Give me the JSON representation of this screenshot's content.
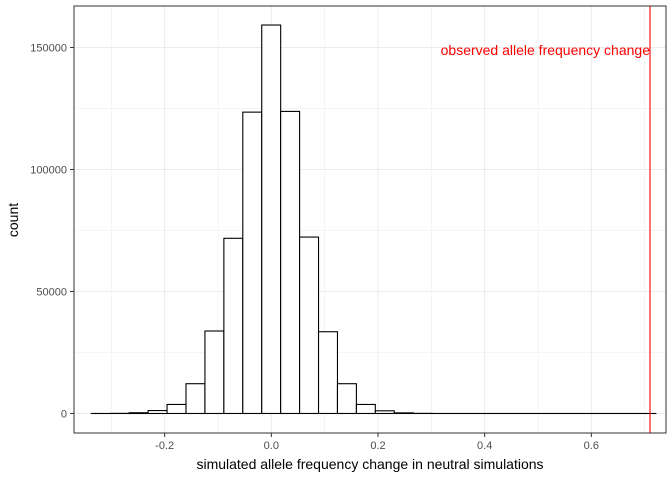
{
  "chart_data": {
    "type": "bar",
    "title": "",
    "xlabel": "simulated allele frequency change in neutral simulations",
    "ylabel": "count",
    "xlim": [
      -0.37,
      0.74
    ],
    "ylim": [
      -8000,
      167000
    ],
    "x_ticks": [
      -0.2,
      0.0,
      0.2,
      0.4,
      0.6
    ],
    "x_tick_labels": [
      "-0.2",
      "0.0",
      "0.2",
      "0.4",
      "0.6"
    ],
    "y_ticks": [
      0,
      50000,
      100000,
      150000
    ],
    "y_tick_labels": [
      "0",
      "50000",
      "100000",
      "150000"
    ],
    "grid": true,
    "bin_width": 0.0355,
    "bins": [
      {
        "x0": -0.3375,
        "x1": -0.302,
        "count": 0
      },
      {
        "x0": -0.302,
        "x1": -0.2665,
        "count": 50
      },
      {
        "x0": -0.2665,
        "x1": -0.231,
        "count": 300
      },
      {
        "x0": -0.231,
        "x1": -0.1955,
        "count": 1200
      },
      {
        "x0": -0.1955,
        "x1": -0.16,
        "count": 3700
      },
      {
        "x0": -0.16,
        "x1": -0.1245,
        "count": 12200
      },
      {
        "x0": -0.1245,
        "x1": -0.089,
        "count": 33800
      },
      {
        "x0": -0.089,
        "x1": -0.0535,
        "count": 71800
      },
      {
        "x0": -0.0535,
        "x1": -0.018,
        "count": 123500
      },
      {
        "x0": -0.018,
        "x1": 0.0175,
        "count": 159200
      },
      {
        "x0": 0.0175,
        "x1": 0.053,
        "count": 123800
      },
      {
        "x0": 0.053,
        "x1": 0.0885,
        "count": 72300
      },
      {
        "x0": 0.0885,
        "x1": 0.124,
        "count": 33500
      },
      {
        "x0": 0.124,
        "x1": 0.1595,
        "count": 12200
      },
      {
        "x0": 0.1595,
        "x1": 0.195,
        "count": 3700
      },
      {
        "x0": 0.195,
        "x1": 0.2305,
        "count": 1100
      },
      {
        "x0": 0.2305,
        "x1": 0.266,
        "count": 250
      },
      {
        "x0": 0.266,
        "x1": 0.3015,
        "count": 50
      },
      {
        "x0": 0.3015,
        "x1": 0.721,
        "count": 0
      }
    ],
    "annotations": [
      {
        "text": "observed allele frequency change",
        "x": 0.71,
        "y": 149000,
        "color": "#ff0000"
      }
    ],
    "vline": {
      "x": 0.71,
      "color": "#ff0000"
    }
  }
}
